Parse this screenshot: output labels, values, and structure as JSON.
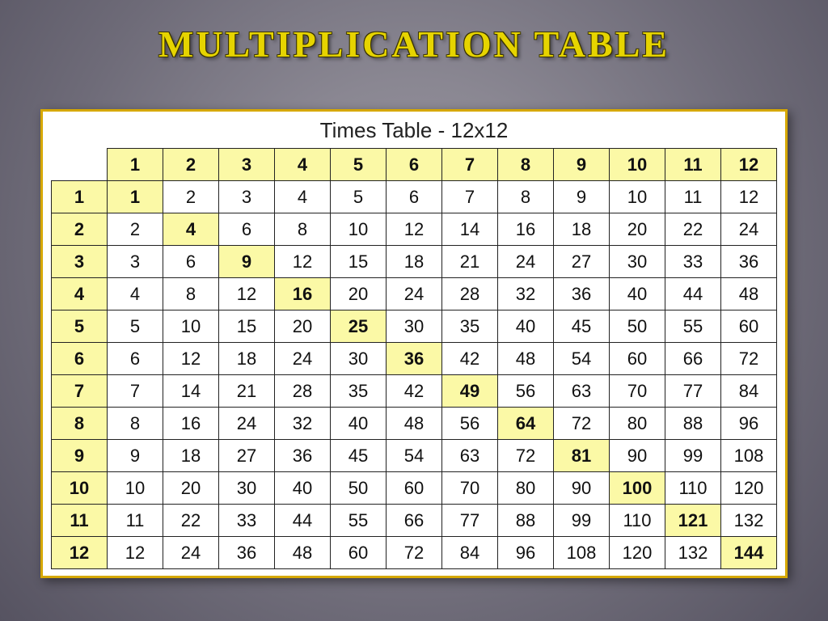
{
  "colors": {
    "highlight_bg": "#fbf9a6",
    "cell_bg": "#ffffff",
    "cell_border": "#222222",
    "frame_border": "#d6a800",
    "title_color": "#e6d400"
  },
  "title": "MULTIPLICATION TABLE",
  "table": {
    "caption": "Times Table - 12x12",
    "size": 12,
    "col_headers": [
      "1",
      "2",
      "3",
      "4",
      "5",
      "6",
      "7",
      "8",
      "9",
      "10",
      "11",
      "12"
    ],
    "row_headers": [
      "1",
      "2",
      "3",
      "4",
      "5",
      "6",
      "7",
      "8",
      "9",
      "10",
      "11",
      "12"
    ],
    "rows": [
      [
        1,
        2,
        3,
        4,
        5,
        6,
        7,
        8,
        9,
        10,
        11,
        12
      ],
      [
        2,
        4,
        6,
        8,
        10,
        12,
        14,
        16,
        18,
        20,
        22,
        24
      ],
      [
        3,
        6,
        9,
        12,
        15,
        18,
        21,
        24,
        27,
        30,
        33,
        36
      ],
      [
        4,
        8,
        12,
        16,
        20,
        24,
        28,
        32,
        36,
        40,
        44,
        48
      ],
      [
        5,
        10,
        15,
        20,
        25,
        30,
        35,
        40,
        45,
        50,
        55,
        60
      ],
      [
        6,
        12,
        18,
        24,
        30,
        36,
        42,
        48,
        54,
        60,
        66,
        72
      ],
      [
        7,
        14,
        21,
        28,
        35,
        42,
        49,
        56,
        63,
        70,
        77,
        84
      ],
      [
        8,
        16,
        24,
        32,
        40,
        48,
        56,
        64,
        72,
        80,
        88,
        96
      ],
      [
        9,
        18,
        27,
        36,
        45,
        54,
        63,
        72,
        81,
        90,
        99,
        108
      ],
      [
        10,
        20,
        30,
        40,
        50,
        60,
        70,
        80,
        90,
        100,
        110,
        120
      ],
      [
        11,
        22,
        33,
        44,
        55,
        66,
        77,
        88,
        99,
        110,
        121,
        132
      ],
      [
        12,
        24,
        36,
        48,
        60,
        72,
        84,
        96,
        108,
        120,
        132,
        144
      ]
    ]
  }
}
